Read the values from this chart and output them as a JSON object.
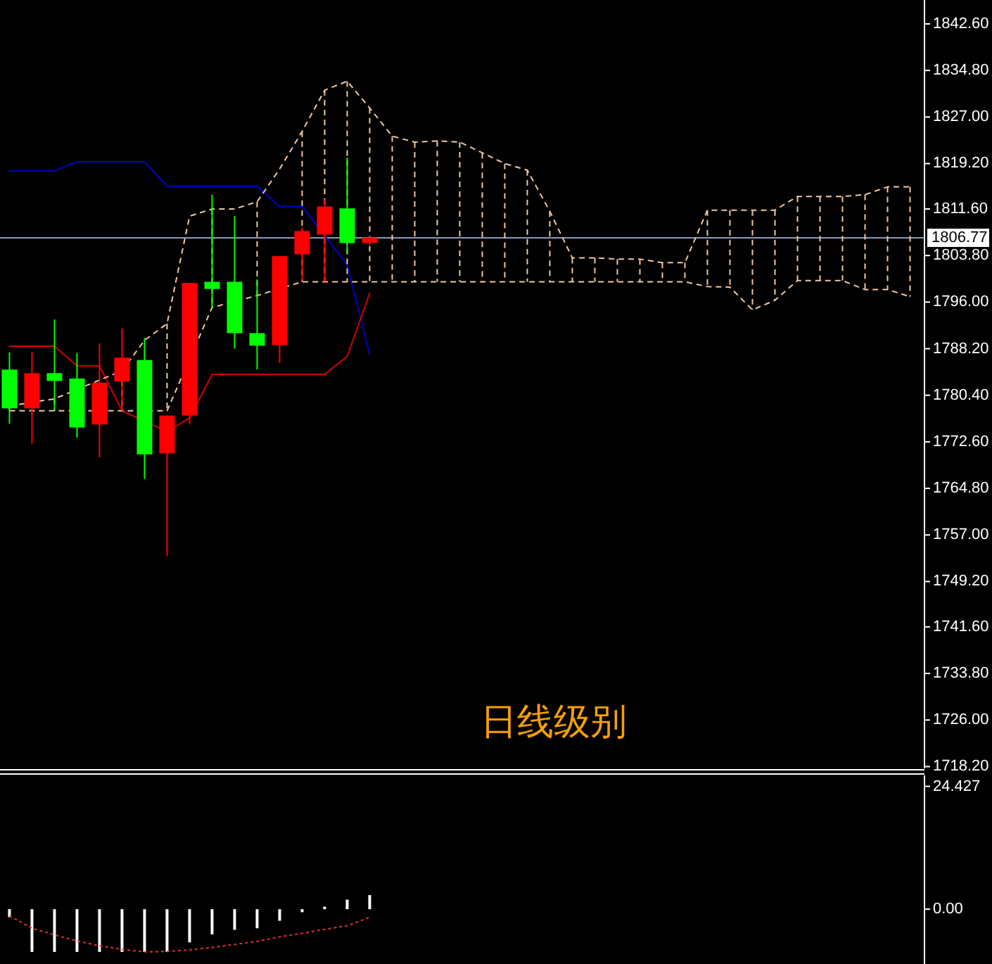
{
  "chart_data": [
    {
      "type": "candlestick",
      "tick_labels": "y",
      "categories": [
        null,
        null,
        null,
        null,
        null,
        null,
        null,
        null,
        null,
        null,
        null,
        null,
        null,
        null,
        null,
        null,
        null,
        null,
        null,
        null,
        null,
        null,
        null,
        null,
        null,
        null,
        null,
        null,
        null,
        null,
        null,
        null,
        null,
        null,
        null,
        null,
        null,
        null,
        null,
        null,
        null
      ],
      "ohlc": [
        [
          1784.7,
          1787.6,
          1775.6,
          1778.2
        ],
        [
          1778.2,
          1787.6,
          1772.3,
          1784.1
        ],
        [
          1784.1,
          1793.1,
          1777.8,
          1782.8
        ],
        [
          1783.2,
          1787.5,
          1773.3,
          1775.0
        ],
        [
          1775.5,
          1789.1,
          1770.0,
          1782.5
        ],
        [
          1782.7,
          1791.6,
          1777.8,
          1786.7
        ],
        [
          1786.3,
          1790.0,
          1766.4,
          1770.5
        ],
        [
          1770.7,
          1777.0,
          1753.5,
          1777.0
        ],
        [
          1777.0,
          1799.2,
          1775.5,
          1799.2
        ],
        [
          1799.4,
          1814.0,
          1795.1,
          1798.2
        ],
        [
          1799.4,
          1810.4,
          1788.2,
          1790.8
        ],
        [
          1790.8,
          1799.8,
          1784.7,
          1788.7
        ],
        [
          1788.8,
          1803.7,
          1785.8,
          1803.7
        ],
        [
          1804.0,
          1808.5,
          1799.6,
          1807.9
        ],
        [
          1807.3,
          1813.2,
          1799.4,
          1812.0
        ],
        [
          1811.7,
          1820.2,
          1804.1,
          1805.9
        ],
        [
          1805.9,
          1807.0,
          1805.6,
          1806.8
        ],
        null,
        null,
        null,
        null,
        null,
        null,
        null,
        null,
        null,
        null,
        null,
        null,
        null,
        null,
        null,
        null,
        null,
        null,
        null,
        null,
        null,
        null,
        null,
        null
      ],
      "colors": [
        "#00ff00",
        "#ff0000",
        "#00ff00",
        "#00ff00",
        "#ff0000",
        "#ff0000",
        "#00ff00",
        "#ff0000",
        "#ff0000",
        "#00ff00",
        "#00ff00",
        "#00ff00",
        "#ff0000",
        "#ff0000",
        "#ff0000",
        "#00ff00",
        "#ff0000",
        null,
        null,
        null,
        null,
        null,
        null,
        null,
        null,
        null,
        null,
        null,
        null,
        null,
        null,
        null,
        null,
        null,
        null,
        null,
        null,
        null,
        null,
        null,
        null
      ],
      "series": [
        {
          "type": "line",
          "color": "#0000c8",
          "values": [
            1818.0,
            1818.0,
            1818.0,
            1819.5,
            1819.5,
            1819.5,
            1819.5,
            1815.4,
            1815.4,
            1815.4,
            1815.4,
            1815.4,
            1812.0,
            1812.0,
            null,
            1802.2,
            1787.2,
            null,
            null,
            null,
            null,
            null,
            null,
            null,
            null,
            null,
            null,
            null,
            null,
            null,
            null,
            null,
            null,
            null,
            null,
            null,
            null,
            null,
            null,
            null,
            null
          ]
        },
        {
          "type": "line",
          "color": "#d00000",
          "values": [
            1788.6,
            1788.6,
            1788.6,
            1785.3,
            1785.3,
            1777.8,
            null,
            1774.3,
            1776.6,
            1783.9,
            1783.9,
            1783.9,
            1783.9,
            1783.9,
            1783.9,
            1786.9,
            1797.5,
            null,
            null,
            null,
            null,
            null,
            null,
            null,
            null,
            null,
            null,
            null,
            null,
            null,
            null,
            null,
            null,
            null,
            null,
            null,
            null,
            null,
            null,
            null,
            null
          ]
        },
        {
          "type": "line",
          "color": "#f0c8a0",
          "line_style": "dashed",
          "values": [
            1778.6,
            null,
            1779.8,
            null,
            null,
            1784.5,
            1789.6,
            1792.4,
            1810.4,
            1811.6,
            1811.6,
            1812.8,
            1818.3,
            1824.6,
            1831.5,
            1833.0,
            1828.5,
            1823.8,
            1822.8,
            1823.0,
            1822.8,
            1821.0,
            1819.2,
            1818.1,
            1811.2,
            1803.4,
            1803.4,
            1803.2,
            1803.2,
            1802.6,
            1802.6,
            1811.4,
            1811.4,
            1811.4,
            1811.4,
            1813.7,
            1813.7,
            1813.7,
            1814.0,
            1815.3,
            1815.3
          ]
        },
        {
          "type": "line",
          "color": "#f0c8a0",
          "line_style": "dashed",
          "values": [
            1777.8,
            1777.8,
            1777.8,
            null,
            null,
            1777.8,
            null,
            1777.8,
            null,
            1795.1,
            null,
            1797.1,
            null,
            1799.4,
            1799.4,
            1799.4,
            1799.4,
            1799.4,
            1799.4,
            1799.4,
            1799.4,
            1799.4,
            1799.4,
            1799.4,
            1799.4,
            1799.4,
            1799.4,
            1799.4,
            1799.4,
            1799.4,
            1799.4,
            1798.6,
            1798.5,
            1794.7,
            1796.3,
            1799.6,
            1799.6,
            1799.6,
            1798.1,
            1798.1,
            1796.9
          ]
        }
      ],
      "ylim": [
        1717.9,
        1846.6
      ],
      "yticks": [
        {
          "value": 1842.6,
          "label": "1842.60"
        },
        {
          "value": 1834.8,
          "label": "1834.80"
        },
        {
          "value": 1827.0,
          "label": "1827.00"
        },
        {
          "value": 1819.2,
          "label": "1819.20"
        },
        {
          "value": 1811.6,
          "label": "1811.60"
        },
        {
          "value": 1803.8,
          "label": "1803.80"
        },
        {
          "value": 1796.0,
          "label": "1796.00"
        },
        {
          "value": 1788.2,
          "label": "1788.20"
        },
        {
          "value": 1780.4,
          "label": "1780.40"
        },
        {
          "value": 1772.6,
          "label": "1772.60"
        },
        {
          "value": 1764.8,
          "label": "1764.80"
        },
        {
          "value": 1757.0,
          "label": "1757.00"
        },
        {
          "value": 1749.2,
          "label": "1749.20"
        },
        {
          "value": 1741.6,
          "label": "1741.60"
        },
        {
          "value": 1733.8,
          "label": "1733.80"
        },
        {
          "value": 1726.0,
          "label": "1726.00"
        },
        {
          "value": 1718.2,
          "label": "1718.20"
        }
      ],
      "ref_lines": [
        {
          "axis": "y",
          "value": 1806.77,
          "label": "1806.77",
          "color": "#8a9ab8"
        }
      ],
      "annotations": [
        "日线级别"
      ]
    },
    {
      "type": "bar",
      "tick_labels": "y",
      "categories": [
        null,
        null,
        null,
        null,
        null,
        null,
        null,
        null,
        null,
        null,
        null,
        null,
        null,
        null,
        null,
        null,
        null,
        null,
        null,
        null,
        null,
        null,
        null,
        null,
        null,
        null,
        null,
        null,
        null,
        null,
        null,
        null,
        null,
        null,
        null,
        null,
        null,
        null,
        null,
        null,
        null
      ],
      "series": [
        {
          "type": "bar",
          "color": "#ffffff",
          "values": [
            -1.6,
            -8.5,
            -8.5,
            -8.5,
            -8.5,
            -8.5,
            -8.5,
            -8.5,
            -6.6,
            -5.0,
            -4.1,
            -3.8,
            -2.3,
            -0.6,
            0.5,
            1.9,
            2.8,
            null,
            null,
            null,
            null,
            null,
            null,
            null,
            null,
            null,
            null,
            null,
            null,
            null,
            null,
            null,
            null,
            null,
            null,
            null,
            null,
            null,
            null,
            null,
            null
          ]
        },
        {
          "type": "line",
          "color": "#e03030",
          "line_style": "dotted",
          "values": [
            -1.3,
            -3.8,
            -5.1,
            -6.3,
            -7.3,
            -8.0,
            -8.5,
            -8.4,
            -8.1,
            -7.6,
            -7.0,
            -6.4,
            -5.5,
            -4.8,
            -4.0,
            -3.3,
            -1.6,
            null,
            null,
            null,
            null,
            null,
            null,
            null,
            null,
            null,
            null,
            null,
            null,
            null,
            null,
            null,
            null,
            null,
            null,
            null,
            null,
            null,
            null,
            null,
            null
          ]
        }
      ],
      "ylim": [
        -10.9,
        26.6
      ],
      "yticks": [
        24.427,
        {
          "value": 0,
          "label": "0.00"
        }
      ]
    }
  ]
}
